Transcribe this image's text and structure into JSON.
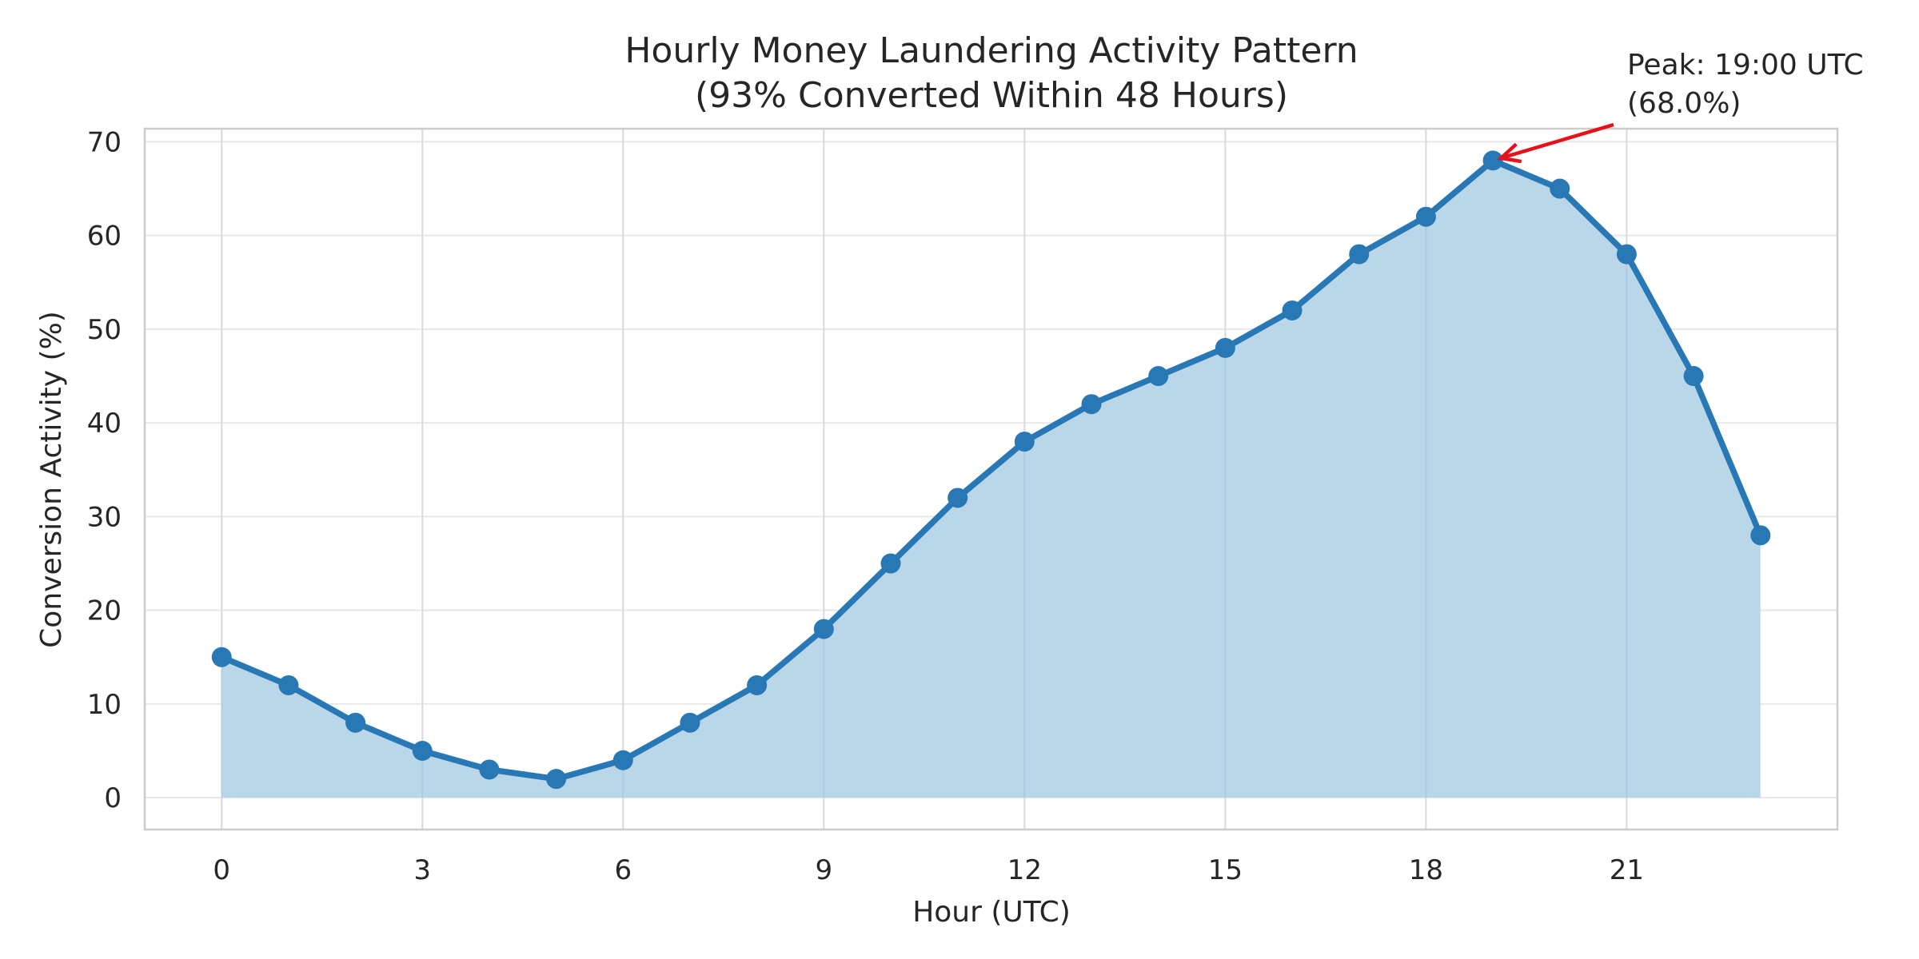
{
  "chart_data": {
    "type": "line",
    "title": "Hourly Money Laundering Activity Pattern",
    "subtitle": "(93% Converted Within 48 Hours)",
    "xlabel": "Hour (UTC)",
    "ylabel": "Conversion Activity (%)",
    "xlim": [
      -1.15,
      24.15
    ],
    "ylim": [
      -3.4,
      71.4
    ],
    "xticks": [
      0,
      3,
      6,
      9,
      12,
      15,
      18,
      21
    ],
    "yticks": [
      0,
      10,
      20,
      30,
      40,
      50,
      60,
      70
    ],
    "grid": true,
    "area_fill": true,
    "colors": {
      "line": "#2878b5",
      "fill": "#bad6e9",
      "grid": "#e8e8e8",
      "frame": "#cccccc",
      "annotation_arrow": "#e8111a"
    },
    "series": [
      {
        "x": [
          0,
          1,
          2,
          3,
          4,
          5,
          6,
          7,
          8,
          9,
          10,
          11,
          12,
          13,
          14,
          15,
          16,
          17,
          18,
          19,
          20,
          21,
          22,
          23
        ],
        "values": [
          15,
          12,
          8,
          5,
          3,
          2,
          4,
          8,
          12,
          18,
          25,
          32,
          38,
          42,
          45,
          48,
          52,
          58,
          62,
          68,
          65,
          58,
          45,
          28
        ]
      }
    ],
    "annotation": {
      "line1": "Peak: 19:00 UTC",
      "line2": "(68.0%)",
      "x": 19,
      "y": 68
    }
  }
}
